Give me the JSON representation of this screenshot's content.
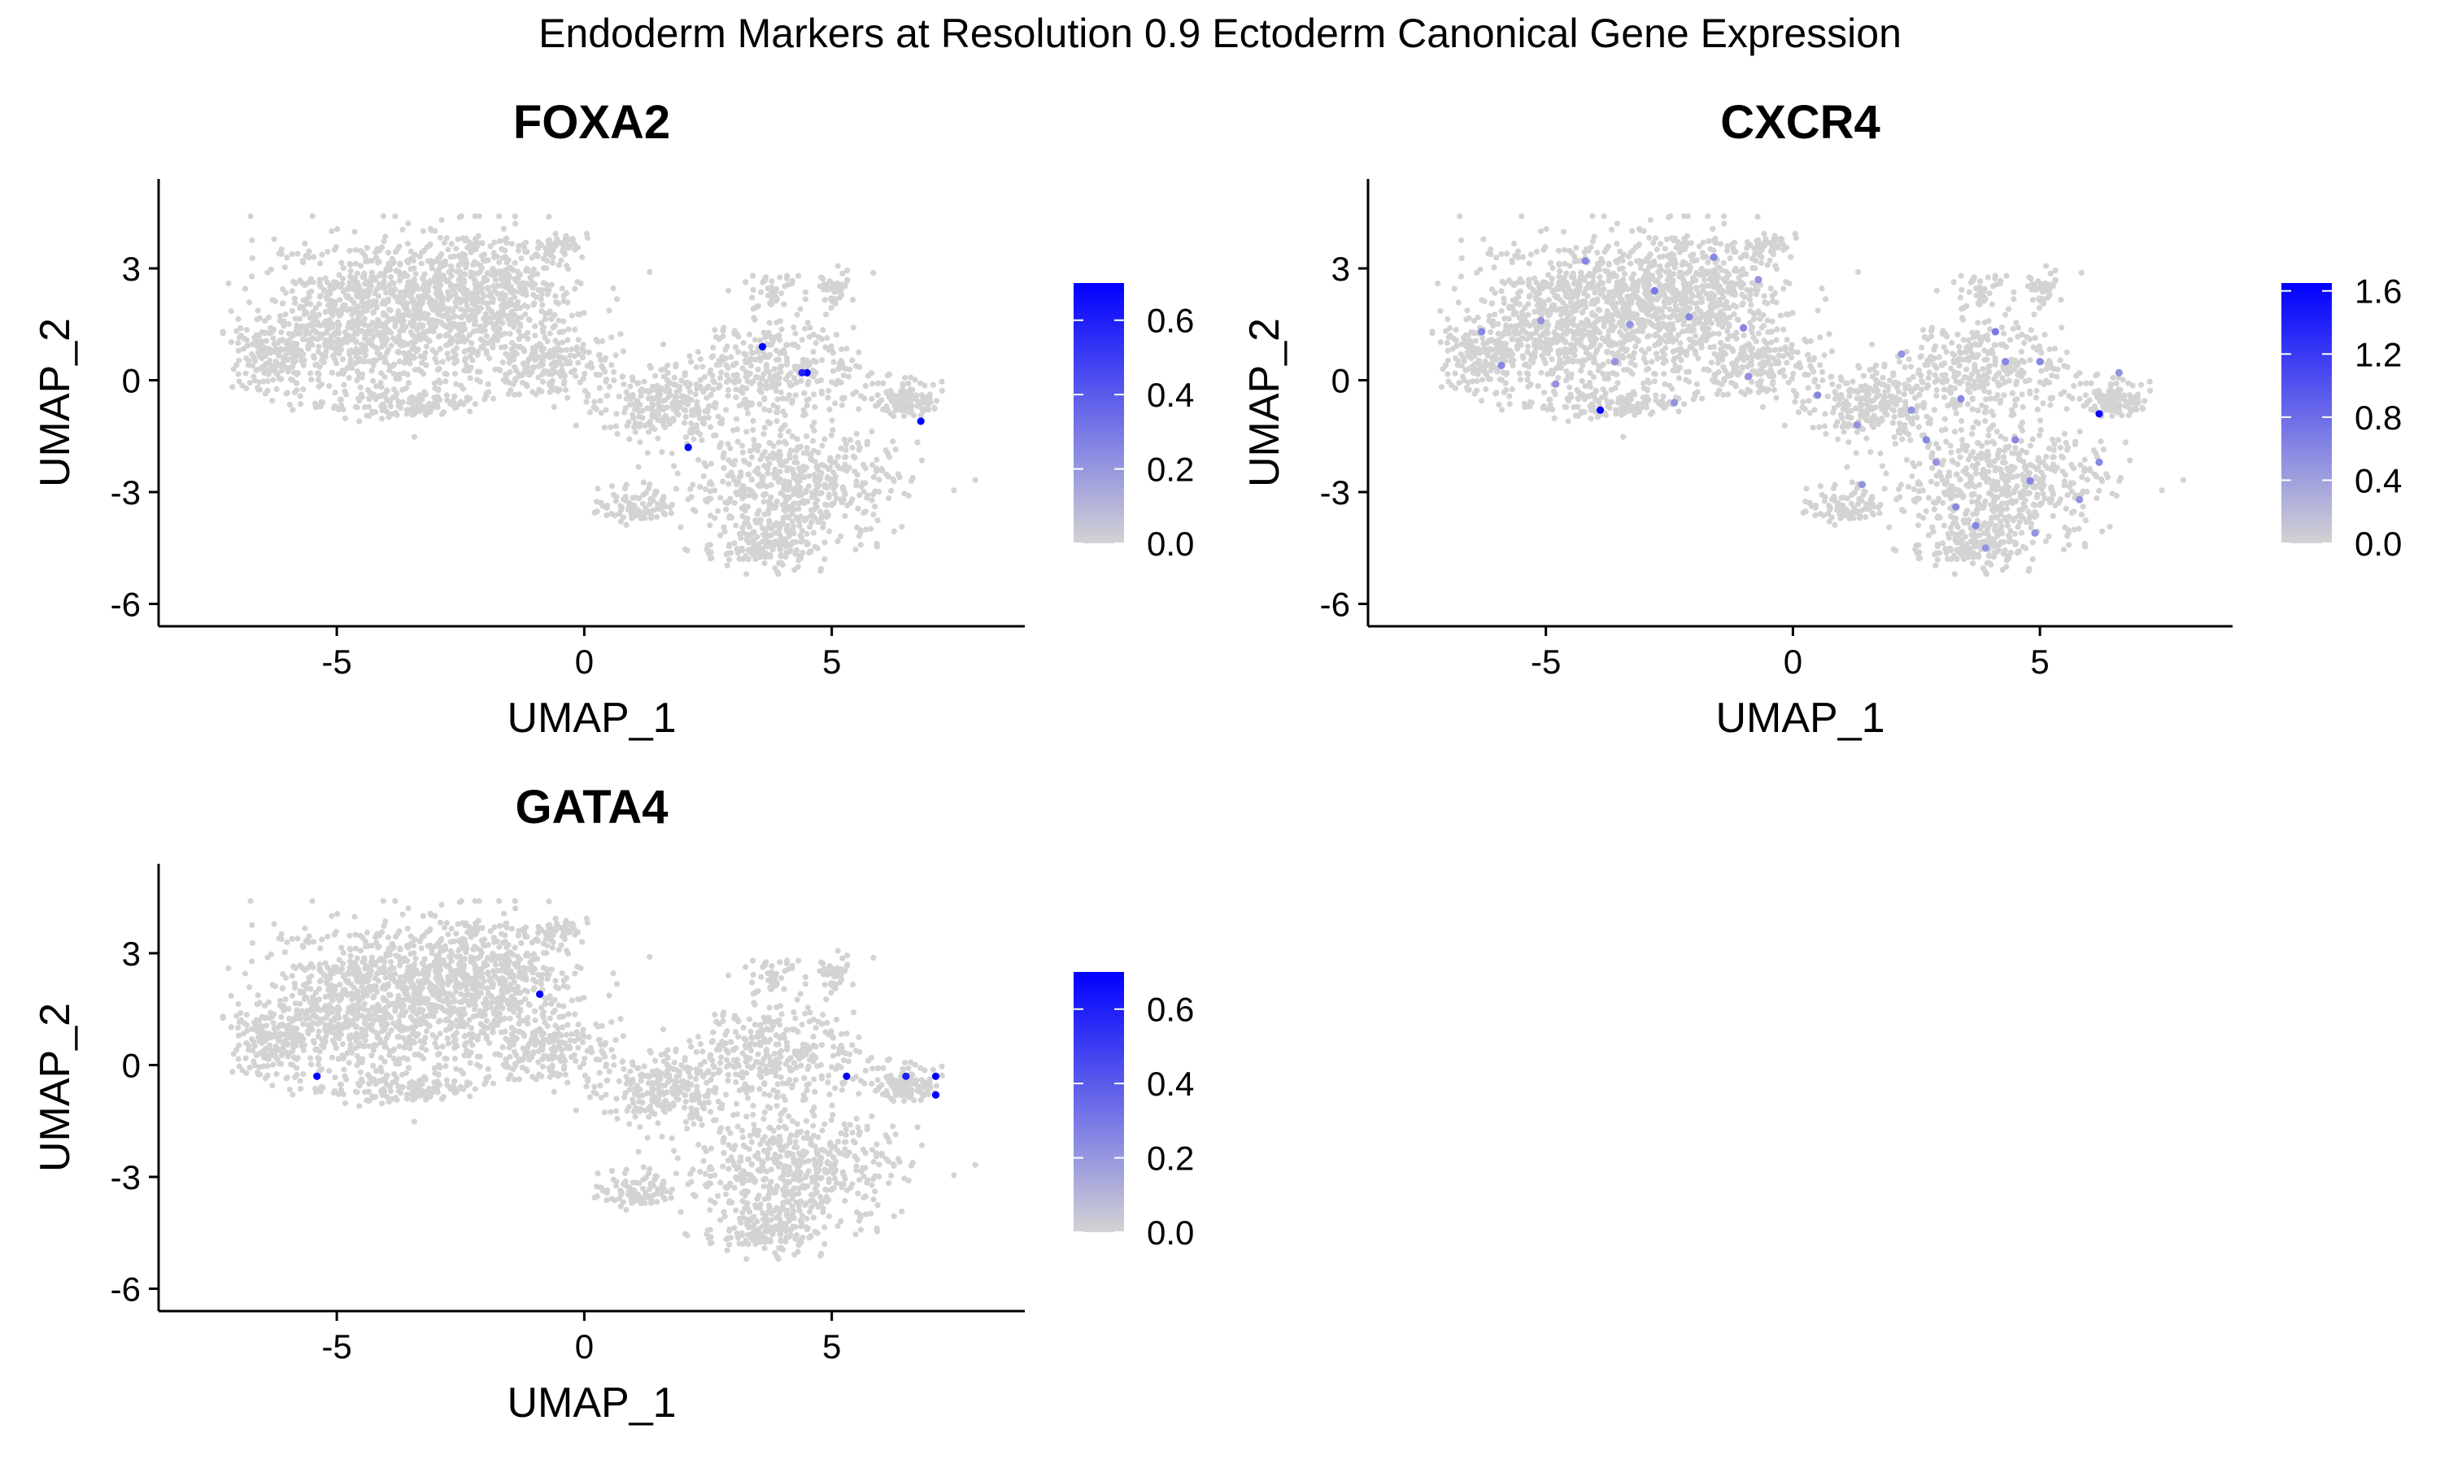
{
  "figure": {
    "title": "Endoderm Markers at Resolution 0.9 Ectoderm Canonical Gene Expression"
  },
  "style": {
    "background": "#ffffff",
    "point_low_color": "#d3d3d3",
    "point_high_color": "#0000ff",
    "axis_color": "#000000"
  },
  "chart_data": [
    {
      "type": "scatter",
      "title": "FOXA2",
      "xlabel": "UMAP_1",
      "ylabel": "UMAP_2",
      "xlim": [
        -8.6,
        8.9
      ],
      "ylim": [
        -6.6,
        5.4
      ],
      "xticks": [
        -5,
        0,
        5
      ],
      "xtick_labels": [
        "-5",
        "0",
        "5"
      ],
      "yticks": [
        -6,
        -3,
        0,
        3
      ],
      "ytick_labels": [
        "-6",
        "-3",
        "0",
        "3"
      ],
      "grid": false,
      "legend": "right",
      "colorbar": {
        "min": 0.0,
        "max": 0.7,
        "ticks": [
          0.0,
          0.2,
          0.4,
          0.6
        ],
        "tick_labels": [
          "0.0",
          "0.2",
          "0.4",
          "0.6"
        ]
      },
      "highlight_points": [
        {
          "x": 3.6,
          "y": 0.9,
          "value": 0.7
        },
        {
          "x": 4.5,
          "y": 0.2,
          "value": 0.7
        },
        {
          "x": 4.4,
          "y": 0.2,
          "value": 0.6
        },
        {
          "x": 2.1,
          "y": -1.8,
          "value": 0.7
        },
        {
          "x": 6.8,
          "y": -1.1,
          "value": 0.7
        }
      ]
    },
    {
      "type": "scatter",
      "title": "CXCR4",
      "xlabel": "UMAP_1",
      "ylabel": "UMAP_2",
      "xlim": [
        -8.6,
        8.9
      ],
      "ylim": [
        -6.6,
        5.4
      ],
      "xticks": [
        -5,
        0,
        5
      ],
      "xtick_labels": [
        "-5",
        "0",
        "5"
      ],
      "yticks": [
        -6,
        -3,
        0,
        3
      ],
      "ytick_labels": [
        "-6",
        "-3",
        "0",
        "3"
      ],
      "grid": false,
      "legend": "right",
      "colorbar": {
        "min": 0.0,
        "max": 1.65,
        "ticks": [
          0.0,
          0.4,
          0.8,
          1.2,
          1.6
        ],
        "tick_labels": [
          "0.0",
          "0.4",
          "0.8",
          "1.2",
          "1.6"
        ]
      },
      "highlight_points": [
        {
          "x": -3.9,
          "y": -0.8,
          "value": 1.6
        },
        {
          "x": 6.2,
          "y": -0.9,
          "value": 1.6
        },
        {
          "x": -2.8,
          "y": 2.4,
          "value": 0.7
        },
        {
          "x": -4.2,
          "y": 3.2,
          "value": 0.6
        },
        {
          "x": -1.6,
          "y": 3.3,
          "value": 0.6
        },
        {
          "x": -5.1,
          "y": 1.6,
          "value": 0.5
        },
        {
          "x": -6.3,
          "y": 1.3,
          "value": 0.6
        },
        {
          "x": -3.3,
          "y": 1.5,
          "value": 0.5
        },
        {
          "x": -2.1,
          "y": 1.7,
          "value": 0.6
        },
        {
          "x": -0.7,
          "y": 2.7,
          "value": 0.5
        },
        {
          "x": -1.0,
          "y": 1.4,
          "value": 0.6
        },
        {
          "x": 0.5,
          "y": -0.4,
          "value": 0.6
        },
        {
          "x": 1.3,
          "y": -1.2,
          "value": 0.5
        },
        {
          "x": 2.2,
          "y": 0.7,
          "value": 0.5
        },
        {
          "x": 2.7,
          "y": -1.6,
          "value": 0.6
        },
        {
          "x": 3.4,
          "y": -0.5,
          "value": 0.6
        },
        {
          "x": 4.1,
          "y": 1.3,
          "value": 0.7
        },
        {
          "x": 4.3,
          "y": 0.5,
          "value": 0.6
        },
        {
          "x": 5.0,
          "y": 0.5,
          "value": 0.6
        },
        {
          "x": 3.3,
          "y": -3.4,
          "value": 0.6
        },
        {
          "x": 3.9,
          "y": -4.5,
          "value": 0.5
        },
        {
          "x": 4.8,
          "y": -2.7,
          "value": 0.6
        },
        {
          "x": 5.8,
          "y": -3.2,
          "value": 0.5
        },
        {
          "x": 6.2,
          "y": -2.2,
          "value": 0.6
        },
        {
          "x": 1.4,
          "y": -2.8,
          "value": 0.5
        },
        {
          "x": -4.8,
          "y": -0.1,
          "value": 0.5
        },
        {
          "x": -5.9,
          "y": 0.4,
          "value": 0.6
        },
        {
          "x": -2.4,
          "y": -0.6,
          "value": 0.5
        },
        {
          "x": 4.5,
          "y": -1.6,
          "value": 0.6
        },
        {
          "x": 2.9,
          "y": -2.2,
          "value": 0.5
        },
        {
          "x": -0.9,
          "y": 0.1,
          "value": 0.5
        },
        {
          "x": -3.6,
          "y": 0.5,
          "value": 0.5
        },
        {
          "x": 6.6,
          "y": 0.2,
          "value": 0.5
        },
        {
          "x": 3.7,
          "y": -3.9,
          "value": 0.6
        },
        {
          "x": 4.9,
          "y": -4.1,
          "value": 0.5
        },
        {
          "x": 2.4,
          "y": -0.8,
          "value": 0.5
        }
      ]
    },
    {
      "type": "scatter",
      "title": "GATA4",
      "xlabel": "UMAP_1",
      "ylabel": "UMAP_2",
      "xlim": [
        -8.6,
        8.9
      ],
      "ylim": [
        -6.6,
        5.4
      ],
      "xticks": [
        -5,
        0,
        5
      ],
      "xtick_labels": [
        "-5",
        "0",
        "5"
      ],
      "yticks": [
        -6,
        -3,
        0,
        3
      ],
      "ytick_labels": [
        "-6",
        "-3",
        "0",
        "3"
      ],
      "grid": false,
      "legend": "right",
      "colorbar": {
        "min": 0.0,
        "max": 0.7,
        "ticks": [
          0.0,
          0.2,
          0.4,
          0.6
        ],
        "tick_labels": [
          "0.0",
          "0.2",
          "0.4",
          "0.6"
        ]
      },
      "highlight_points": [
        {
          "x": -5.4,
          "y": -0.3,
          "value": 0.7
        },
        {
          "x": -0.9,
          "y": 1.9,
          "value": 0.7
        },
        {
          "x": 5.3,
          "y": -0.3,
          "value": 0.7
        },
        {
          "x": 6.5,
          "y": -0.3,
          "value": 0.6
        },
        {
          "x": 7.1,
          "y": -0.3,
          "value": 0.7
        },
        {
          "x": 7.1,
          "y": -0.8,
          "value": 0.7
        }
      ]
    }
  ]
}
